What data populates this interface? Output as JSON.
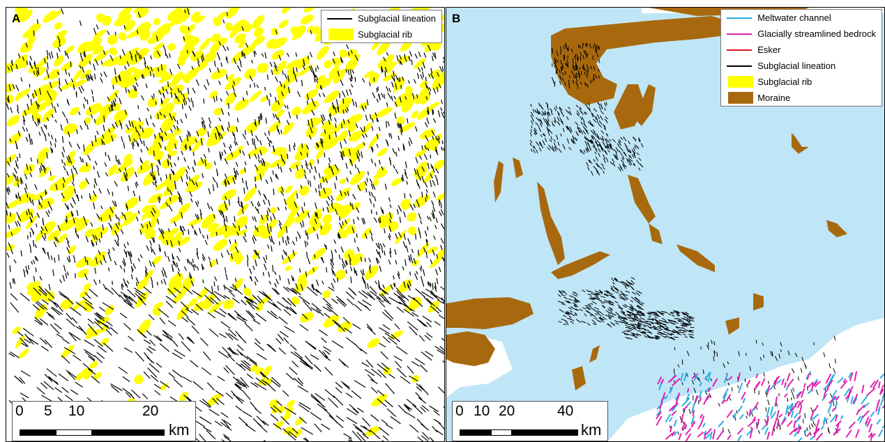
{
  "panels": {
    "a": {
      "letter": "A",
      "legend": [
        {
          "label": "Subglacial lineation",
          "kind": "line",
          "color": "#000000"
        },
        {
          "label": "Subglacial rib",
          "kind": "fill",
          "color": "#ffff00"
        }
      ],
      "scale": {
        "ticks": [
          "0",
          "5",
          "10",
          "20"
        ],
        "unit": "km"
      }
    },
    "b": {
      "letter": "B",
      "legend": [
        {
          "label": "Meltwater channel",
          "kind": "line",
          "color": "#29aee0"
        },
        {
          "label": "Glacially streamlined bedrock",
          "kind": "line",
          "color": "#e020b0"
        },
        {
          "label": "Esker",
          "kind": "line",
          "color": "#e0102a"
        },
        {
          "label": "Subglacial lineation",
          "kind": "line",
          "color": "#000000"
        },
        {
          "label": "Subglacial rib",
          "kind": "fill",
          "color": "#ffff00"
        },
        {
          "label": "Moraine",
          "kind": "fill",
          "color": "#a8690e"
        }
      ],
      "scale": {
        "ticks": [
          "0",
          "10",
          "20",
          "40"
        ],
        "unit": "km"
      }
    }
  },
  "colors": {
    "sea": "#bfe6f7",
    "land": "#ffffff",
    "moraine": "#a8690e",
    "rib": "#ffff00",
    "lineation": "#000000",
    "meltwater": "#29aee0",
    "bedrock": "#e020b0"
  }
}
